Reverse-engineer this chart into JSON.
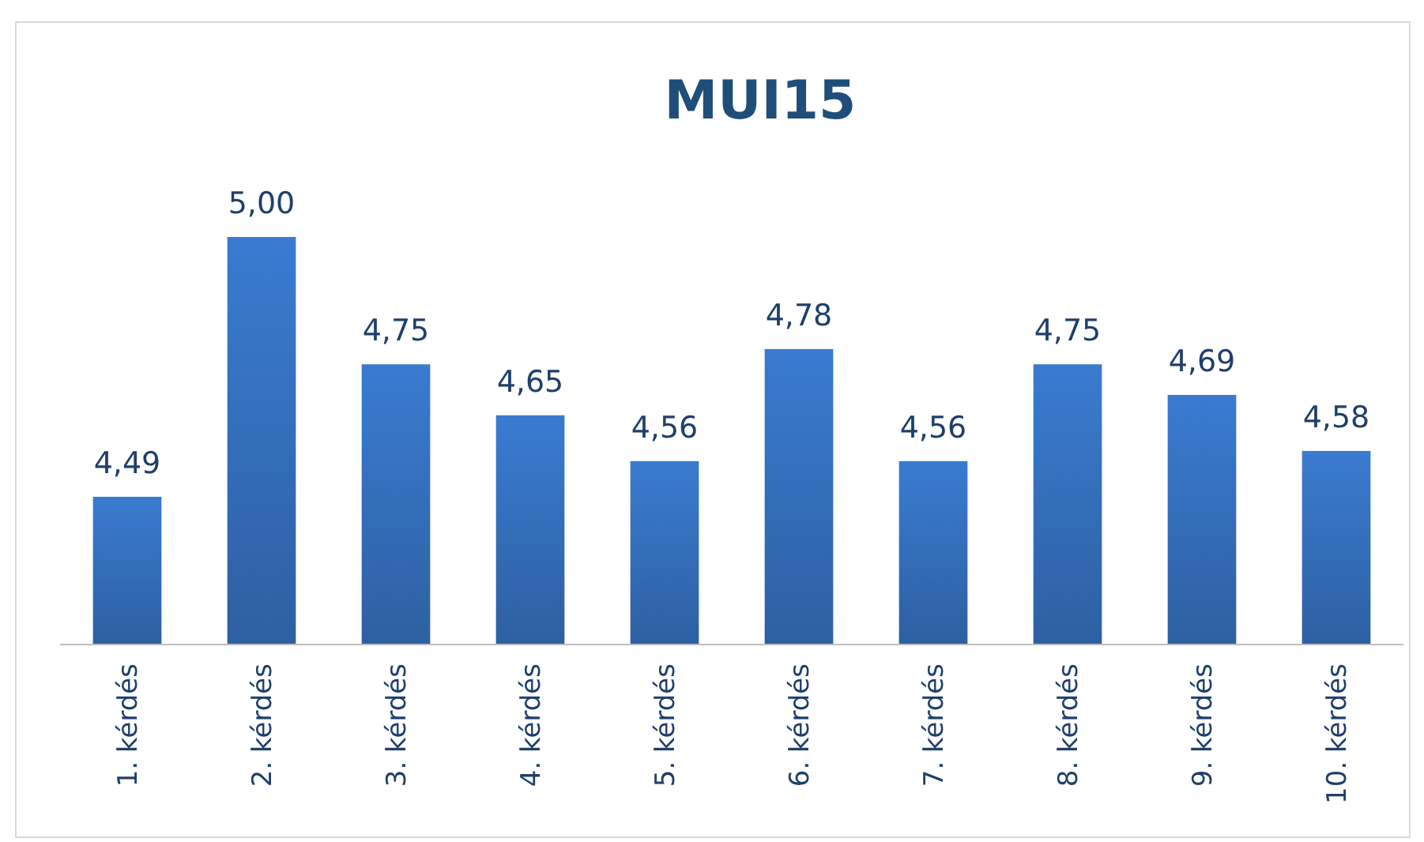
{
  "chart_data": {
    "type": "bar",
    "title": "MUI15",
    "categories": [
      "1. kérdés",
      "2. kérdés",
      "3. kérdés",
      "4. kérdés",
      "5. kérdés",
      "6. kérdés",
      "7. kérdés",
      "8. kérdés",
      "9. kérdés",
      "10. kérdés"
    ],
    "values": [
      4.49,
      5.0,
      4.75,
      4.65,
      4.56,
      4.78,
      4.56,
      4.75,
      4.69,
      4.58
    ],
    "value_labels": [
      "4,49",
      "5,00",
      "4,75",
      "4,65",
      "4,56",
      "4,78",
      "4,56",
      "4,75",
      "4,69",
      "4,58"
    ],
    "color": "#3a7bd0",
    "ylim": [
      4.2,
      5.0
    ],
    "tick_labels": "x"
  }
}
